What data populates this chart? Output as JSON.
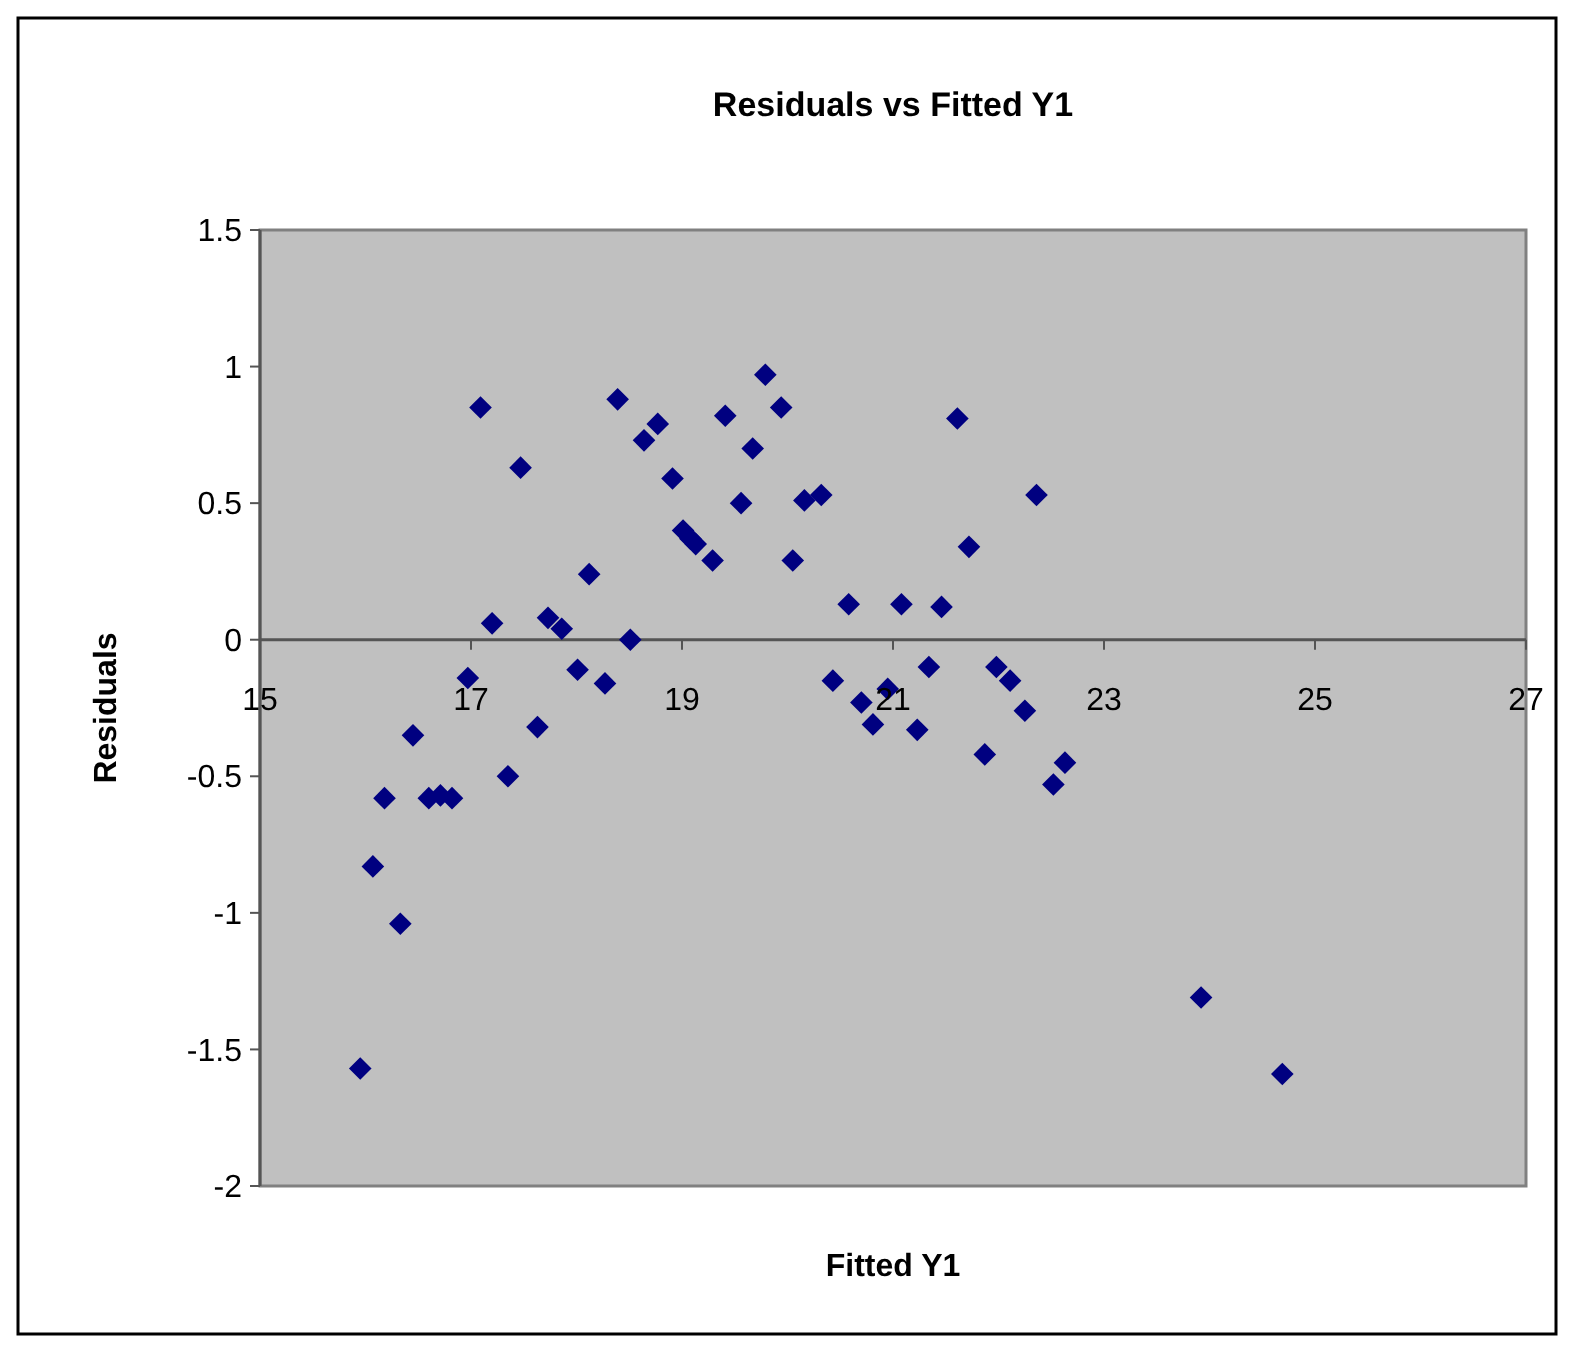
{
  "chart_data": {
    "type": "scatter",
    "title": "Residuals vs Fitted Y1",
    "xlabel": "Fitted Y1",
    "ylabel": "Residuals",
    "marker": "diamond",
    "grid": false,
    "xlim": [
      15,
      27
    ],
    "xticks": [
      15,
      17,
      19,
      21,
      23,
      25,
      27
    ],
    "ylim": [
      -2,
      1.5
    ],
    "yticks": [
      -2,
      -1.5,
      -1,
      -0.5,
      0,
      0.5,
      1,
      1.5
    ],
    "series": [
      {
        "color": "#000080",
        "x": [
          15.95,
          16.07,
          16.18,
          16.33,
          16.45,
          16.6,
          16.71,
          16.82,
          16.97,
          17.09,
          17.2,
          17.35,
          17.47,
          17.63,
          17.73,
          17.86,
          18.01,
          18.12,
          18.27,
          18.39,
          18.51,
          18.64,
          18.77,
          18.91,
          19.01,
          19.08,
          19.13,
          19.29,
          19.41,
          19.56,
          19.67,
          19.79,
          19.94,
          20.05,
          20.16,
          20.32,
          20.43,
          20.58,
          20.7,
          20.81,
          20.95,
          21.08,
          21.23,
          21.34,
          21.46,
          21.61,
          21.72,
          21.87,
          21.98,
          22.11,
          22.25,
          22.36,
          22.52,
          22.63,
          23.92,
          24.69
        ],
        "values": [
          -1.57,
          -0.83,
          -0.58,
          -1.04,
          -0.35,
          -0.58,
          -0.57,
          -0.58,
          -0.14,
          0.85,
          0.06,
          -0.5,
          0.63,
          -0.32,
          0.08,
          0.04,
          -0.11,
          0.24,
          -0.16,
          0.88,
          0,
          0.73,
          0.79,
          0.59,
          0.4,
          0.37,
          0.35,
          0.29,
          0.82,
          0.5,
          0.7,
          0.97,
          0.85,
          0.29,
          0.51,
          0.53,
          -0.15,
          0.13,
          -0.23,
          -0.31,
          -0.18,
          0.13,
          -0.33,
          -0.1,
          0.12,
          0.81,
          0.34,
          -0.42,
          -0.1,
          -0.15,
          -0.26,
          0.53,
          -0.53,
          -0.45,
          -1.31,
          -1.59
        ]
      }
    ]
  }
}
